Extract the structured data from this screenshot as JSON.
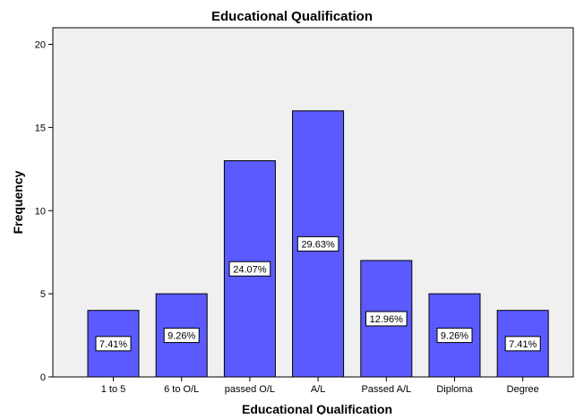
{
  "chart_data": {
    "type": "bar",
    "title": "Educational Qualification",
    "xlabel": "Educational Qualification",
    "ylabel": "Frequency",
    "categories": [
      "1 to 5",
      "6 to O/L",
      "passed O/L",
      "A/L",
      "Passed A/L",
      "Diploma",
      "Degree"
    ],
    "values": [
      4,
      5,
      13,
      16,
      7,
      5,
      4
    ],
    "data_labels": [
      "7.41%",
      "9.26%",
      "24.07%",
      "29.63%",
      "12.96%",
      "9.26%",
      "7.41%"
    ],
    "ylim": [
      0,
      20
    ],
    "yticks": [
      0,
      5,
      10,
      15,
      20
    ],
    "grid": false,
    "legend": "none",
    "colors": {
      "bar_fill": "#5a5aff",
      "bar_stroke": "#000000",
      "plot_background": "#f0f0f0",
      "label_background": "#ffffff"
    }
  }
}
